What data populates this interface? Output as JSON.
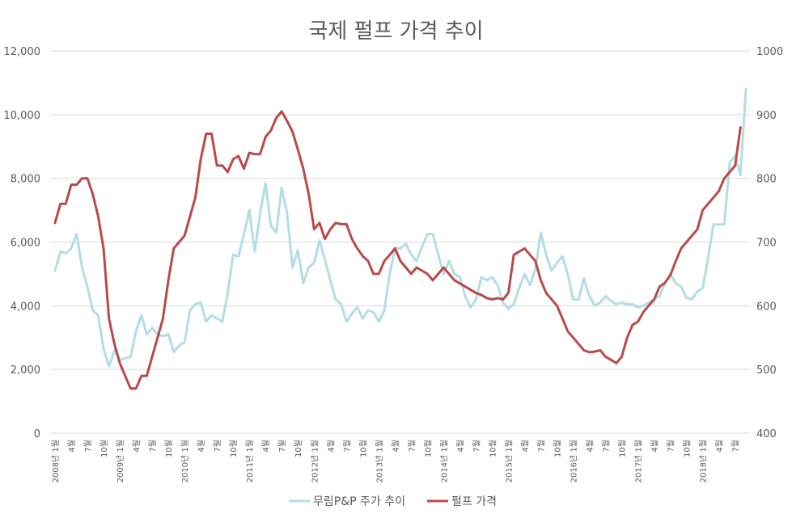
{
  "chart_data": {
    "type": "line",
    "title": "국제 펄프 가격 추이",
    "ylim_left": [
      0,
      12000
    ],
    "yticks_left": [
      "0",
      "2,000",
      "4,000",
      "6,000",
      "8,000",
      "10,000",
      "12,000"
    ],
    "ylim_right": [
      400,
      1000
    ],
    "yticks_right": [
      "400",
      "500",
      "600",
      "700",
      "800",
      "900",
      "1000"
    ],
    "xticks": [
      {
        "i": 0,
        "label": "2008년 1월"
      },
      {
        "i": 3,
        "label": "4월"
      },
      {
        "i": 6,
        "label": "7월"
      },
      {
        "i": 9,
        "label": "10월"
      },
      {
        "i": 12,
        "label": "2009년 1월"
      },
      {
        "i": 15,
        "label": "4월"
      },
      {
        "i": 18,
        "label": "7월"
      },
      {
        "i": 21,
        "label": "10월"
      },
      {
        "i": 24,
        "label": "2010년 1월"
      },
      {
        "i": 27,
        "label": "4월"
      },
      {
        "i": 30,
        "label": "7월"
      },
      {
        "i": 33,
        "label": "10월"
      },
      {
        "i": 36,
        "label": "2011년 1월"
      },
      {
        "i": 39,
        "label": "4월"
      },
      {
        "i": 42,
        "label": "7월"
      },
      {
        "i": 45,
        "label": "10월"
      },
      {
        "i": 48,
        "label": "2012년 1월"
      },
      {
        "i": 51,
        "label": "4월"
      },
      {
        "i": 54,
        "label": "7월"
      },
      {
        "i": 57,
        "label": "10월"
      },
      {
        "i": 60,
        "label": "2013년 1월"
      },
      {
        "i": 63,
        "label": "4월"
      },
      {
        "i": 66,
        "label": "7월"
      },
      {
        "i": 69,
        "label": "10월"
      },
      {
        "i": 72,
        "label": "2014년 1월"
      },
      {
        "i": 75,
        "label": "4월"
      },
      {
        "i": 78,
        "label": "7월"
      },
      {
        "i": 81,
        "label": "10월"
      },
      {
        "i": 84,
        "label": "2015년 1월"
      },
      {
        "i": 87,
        "label": "4월"
      },
      {
        "i": 90,
        "label": "7월"
      },
      {
        "i": 93,
        "label": "10월"
      },
      {
        "i": 96,
        "label": "2016년 1월"
      },
      {
        "i": 99,
        "label": "4월"
      },
      {
        "i": 102,
        "label": "7월"
      },
      {
        "i": 105,
        "label": "10월"
      },
      {
        "i": 108,
        "label": "2017년 1월"
      },
      {
        "i": 111,
        "label": "4월"
      },
      {
        "i": 114,
        "label": "7월"
      },
      {
        "i": 117,
        "label": "10월"
      },
      {
        "i": 120,
        "label": "2018년 1월"
      },
      {
        "i": 123,
        "label": "4월"
      },
      {
        "i": 126,
        "label": "7월"
      }
    ],
    "legend_position": "bottom",
    "series": [
      {
        "name": "무림P&P 주가 추이",
        "axis": "left",
        "color": "#b3dde6",
        "values": [
          5100,
          5700,
          5650,
          5800,
          6250,
          5200,
          4600,
          3850,
          3700,
          2650,
          2100,
          2600,
          2300,
          2350,
          2400,
          3200,
          3700,
          3100,
          3300,
          3100,
          3050,
          3100,
          2550,
          2750,
          2850,
          3850,
          4050,
          4100,
          3500,
          3700,
          3600,
          3500,
          4400,
          5600,
          5550,
          6250,
          7000,
          5700,
          6900,
          7850,
          6500,
          6300,
          7700,
          6900,
          5200,
          5750,
          4700,
          5200,
          5350,
          6050,
          5450,
          4800,
          4200,
          4050,
          3500,
          3750,
          3950,
          3600,
          3850,
          3800,
          3500,
          3850,
          5000,
          5800,
          5800,
          5950,
          5600,
          5400,
          5850,
          6250,
          6250,
          5600,
          5000,
          5400,
          5000,
          4900,
          4300,
          3950,
          4200,
          4900,
          4800,
          4900,
          4650,
          4100,
          3900,
          4050,
          4550,
          5000,
          4650,
          5150,
          6300,
          5600,
          5100,
          5350,
          5550,
          5000,
          4200,
          4200,
          4850,
          4300,
          4000,
          4100,
          4300,
          4150,
          4050,
          4100,
          4050,
          4050,
          3950,
          4000,
          4100,
          4200,
          4300,
          4700,
          5000,
          4700,
          4600,
          4250,
          4200,
          4450,
          4550,
          5500,
          6550,
          6550,
          6550,
          8500,
          8700,
          8100,
          10800
        ]
      },
      {
        "name": "펄프 가격",
        "axis": "right",
        "color": "#b84a4a",
        "values": [
          730,
          760,
          760,
          790,
          790,
          800,
          800,
          775,
          740,
          690,
          580,
          540,
          510,
          490,
          470,
          470,
          490,
          490,
          520,
          550,
          580,
          640,
          690,
          700,
          710,
          740,
          770,
          830,
          870,
          870,
          820,
          820,
          810,
          830,
          835,
          815,
          840,
          838,
          838,
          865,
          875,
          895,
          905,
          890,
          873,
          845,
          815,
          775,
          720,
          730,
          705,
          720,
          730,
          728,
          728,
          705,
          690,
          678,
          670,
          650,
          650,
          670,
          680,
          690,
          670,
          660,
          650,
          660,
          655,
          650,
          640,
          650,
          660,
          650,
          640,
          635,
          630,
          625,
          620,
          617,
          612,
          610,
          612,
          610,
          620,
          680,
          685,
          690,
          680,
          670,
          640,
          620,
          610,
          600,
          580,
          560,
          550,
          540,
          530,
          527,
          528,
          530,
          520,
          515,
          510,
          520,
          550,
          570,
          575,
          590,
          600,
          610,
          630,
          636,
          648,
          670,
          690,
          700,
          710,
          720,
          750,
          760,
          770,
          780,
          800,
          810,
          820,
          880
        ]
      }
    ]
  }
}
